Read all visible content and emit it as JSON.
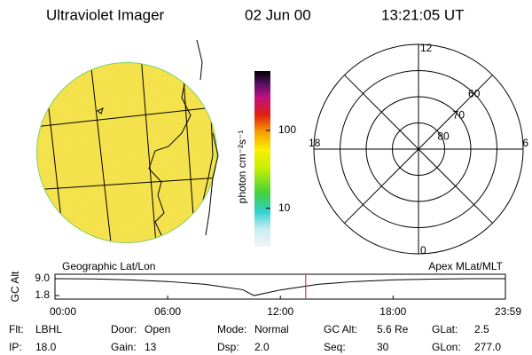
{
  "header": {
    "title": "Ultraviolet Imager",
    "date": "02 Jun 00",
    "time": "13:21:05 UT"
  },
  "colorbar": {
    "label": "photon cm⁻²s⁻¹",
    "log": true,
    "lim": [
      3.2,
      580
    ],
    "ticks": [
      10,
      100
    ]
  },
  "polar": {
    "rlim": [
      90,
      50
    ],
    "lat_circles": [
      80,
      70,
      60
    ],
    "mlt_labels": [
      12,
      18,
      6,
      0
    ]
  },
  "timeline": {
    "left_label": "Geographic Lat/Lon",
    "right_label": "Apex MLat/MLT",
    "y_label": "GC Alt",
    "xlim": [
      0,
      23.98
    ],
    "ylim": [
      0.3,
      10.9
    ],
    "yticks": [
      {
        "value": 9.0,
        "label": "9.0"
      },
      {
        "value": 1.8,
        "label": "1.8"
      }
    ],
    "xticks": [
      {
        "value": 0,
        "label": "00:00"
      },
      {
        "value": 6,
        "label": "06:00"
      },
      {
        "value": 12,
        "label": "12:00"
      },
      {
        "value": 18,
        "label": "18:00"
      },
      {
        "value": 23.98,
        "label": "23:59"
      }
    ],
    "x": [
      0,
      2,
      4,
      6,
      8,
      10,
      10.6,
      12,
      14,
      16,
      18,
      20,
      22,
      23.98
    ],
    "values": [
      9.0,
      8.9,
      8.5,
      7.8,
      6.6,
      4.3,
      1.8,
      4.2,
      6.6,
      7.8,
      8.5,
      8.8,
      9.0,
      9.0
    ],
    "marker": 13.35
  },
  "footer": {
    "rows": [
      [
        {
          "label": "Flt:",
          "value": "LBHL"
        },
        {
          "label": "Door:",
          "value": "Open"
        },
        {
          "label": "Mode:",
          "value": "Normal"
        },
        {
          "label": "GC Alt:",
          "value": "5.6 Re"
        },
        {
          "label": "GLat:",
          "value": "2.5"
        }
      ],
      [
        {
          "label": "IP:",
          "value": "18.0"
        },
        {
          "label": "Gain:",
          "value": "13"
        },
        {
          "label": "Dsp:",
          "value": "2.0"
        },
        {
          "label": "Seq:",
          "value": "30"
        },
        {
          "label": "GLon:",
          "value": "277.0"
        }
      ]
    ]
  }
}
